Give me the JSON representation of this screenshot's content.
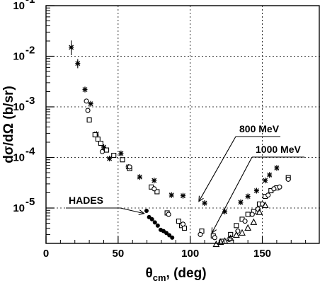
{
  "chart_data": {
    "type": "scatter",
    "title": "",
    "xlabel": "θcm, (deg)",
    "xlabel_parts": {
      "main": "θ",
      "sub": "cm",
      "rest": ", (deg)"
    },
    "ylabel": "dσ/dΩ (b/sr)",
    "xlim": [
      0,
      190
    ],
    "ylim": [
      2e-06,
      0.1
    ],
    "yscale": "log",
    "grid": true,
    "x_ticks": [
      "0",
      "50",
      "100",
      "150"
    ],
    "y_ticks": [
      {
        "base": "10",
        "exp": "-5"
      },
      {
        "base": "10",
        "exp": "-4"
      },
      {
        "base": "10",
        "exp": "-3"
      },
      {
        "base": "10",
        "exp": "-2"
      },
      {
        "base": "10",
        "exp": "-1"
      }
    ],
    "annotations": [
      {
        "text": "800 MeV",
        "arrow_to": [
          106,
          1.35e-05
        ]
      },
      {
        "text": "1000 MeV",
        "arrow_to": [
          115,
          3.2e-06
        ]
      },
      {
        "text": "HADES",
        "arrow_to": [
          68,
          7.8e-06
        ]
      }
    ],
    "series": [
      {
        "marker": "asterisk",
        "points": [
          [
            17.5,
            0.015
          ],
          [
            22,
            0.0072
          ],
          [
            27,
            0.0022
          ],
          [
            31,
            0.00115
          ],
          [
            35,
            0.00029
          ],
          [
            40,
            0.00016
          ],
          [
            44,
            9.5e-05
          ],
          [
            52,
            0.00012
          ],
          [
            57,
            6.5e-05
          ],
          [
            65,
            4.1e-05
          ],
          [
            75,
            3.5e-05
          ],
          [
            87,
            1.8e-05
          ],
          [
            95,
            1.75e-05
          ],
          [
            110,
            1.25e-05
          ],
          [
            124,
            8.5e-06
          ],
          [
            135,
            1.3e-05
          ],
          [
            140,
            1.7e-05
          ],
          [
            146,
            2.2e-05
          ],
          [
            152,
            3.5e-05
          ],
          [
            155,
            4.5e-05
          ],
          [
            160,
            6.2e-05
          ]
        ]
      },
      {
        "marker": "open-square",
        "points": [
          [
            30,
            0.00055
          ],
          [
            34,
            0.00028
          ],
          [
            36,
            0.00023
          ],
          [
            38,
            0.00019
          ],
          [
            42,
            0.00014
          ],
          [
            47,
            0.00011
          ],
          [
            53,
            9e-05
          ],
          [
            58,
            6e-05
          ],
          [
            73,
            2.6e-05
          ],
          [
            77,
            2.1e-05
          ],
          [
            84,
            8e-06
          ],
          [
            92,
            5.5e-06
          ],
          [
            94,
            4.5e-06
          ],
          [
            96,
            4e-06
          ],
          [
            108,
            3.5e-06
          ],
          [
            116,
            2.8e-06
          ],
          [
            122,
            2.2e-06
          ],
          [
            128,
            3e-06
          ],
          [
            132,
            4.5e-06
          ],
          [
            136,
            6e-06
          ],
          [
            140,
            7.5e-06
          ],
          [
            144,
            8.5e-06
          ],
          [
            148,
            1.2e-05
          ],
          [
            152,
            1.7e-05
          ],
          [
            156,
            2.2e-05
          ],
          [
            160,
            2.5e-05
          ],
          [
            168,
            4e-05
          ]
        ]
      },
      {
        "marker": "open-circle",
        "points": [
          [
            28,
            0.0013
          ],
          [
            29,
            0.00085
          ],
          [
            39,
            0.00013
          ],
          [
            58,
            6.5e-05
          ],
          [
            75,
            2.4e-05
          ],
          [
            85,
            7.5e-06
          ],
          [
            95,
            4.8e-06
          ],
          [
            107,
            3e-06
          ],
          [
            117,
            2.6e-06
          ],
          [
            127,
            2.4e-06
          ],
          [
            133,
            3.5e-06
          ],
          [
            138,
            5.5e-06
          ],
          [
            143,
            7.5e-06
          ],
          [
            147,
            9.5e-06
          ],
          [
            150,
            1.2e-05
          ],
          [
            154,
            1.8e-05
          ],
          [
            158,
            2.4e-05
          ],
          [
            162,
            2.6e-05
          ],
          [
            168,
            3.7e-05
          ]
        ]
      },
      {
        "marker": "filled-circle",
        "name": "HADES",
        "points": [
          [
            69.7,
            8.8e-06
          ],
          [
            71.5,
            6.6e-06
          ],
          [
            73.5,
            6e-06
          ],
          [
            75.5,
            5.2e-06
          ],
          [
            77.5,
            4.5e-06
          ],
          [
            79.5,
            3.7e-06
          ],
          [
            81.5,
            3.5e-06
          ],
          [
            83.5,
            3.2e-06
          ],
          [
            85.5,
            2.9e-06
          ],
          [
            87.5,
            2.6e-06
          ]
        ]
      },
      {
        "marker": "open-triangle",
        "points": [
          [
            118,
            1.9e-06
          ],
          [
            121,
            2.1e-06
          ],
          [
            124,
            2.2e-06
          ],
          [
            128,
            2.5e-06
          ],
          [
            132,
            2.9e-06
          ],
          [
            136,
            3.2e-06
          ],
          [
            140,
            4e-06
          ],
          [
            144,
            5.2e-06
          ],
          [
            148,
            8.2e-06
          ],
          [
            152,
            1.12e-05
          ]
        ]
      }
    ]
  }
}
